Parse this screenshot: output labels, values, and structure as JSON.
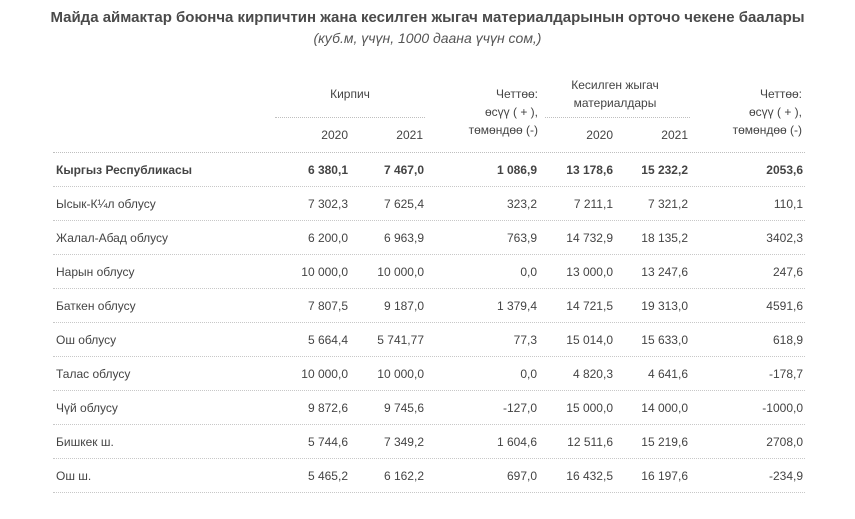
{
  "title": "Майда аймактар боюнча кирпичтин жана кесилген жыгач материалдарынын орточо чекене баалары",
  "subtitle": "(куб.м, үчүн, 1000 даана үчүн сом,)",
  "header": {
    "brick": "Кирпич",
    "diff1_line1": "Четтөө:",
    "diff1_line2": "өсүү ( + ),",
    "diff1_line3": "төмөндөө (-)",
    "timber_line1": "Кесилген жыгач",
    "timber_line2": "материалдары",
    "diff2_line1": "Четтөө:",
    "diff2_line2": "өсүү ( + ),",
    "diff2_line3": "төмөндөө (-)",
    "y2020a": "2020",
    "y2021a": "2021",
    "y2020b": "2020",
    "y2021b": "2021"
  },
  "rows": [
    {
      "name": "Кыргыз Республикасы",
      "b2020": "6 380,1",
      "b2021": "7 467,0",
      "bdiff": "1 086,9",
      "t2020": "13 178,6",
      "t2021": "15 232,2",
      "tdiff": "2053,6"
    },
    {
      "name": "Ысык-К¼л облусу",
      "b2020": "7 302,3",
      "b2021": "7 625,4",
      "bdiff": "323,2",
      "t2020": "7 211,1",
      "t2021": "7 321,2",
      "tdiff": "110,1"
    },
    {
      "name": "Жалал-Абад облусу",
      "b2020": "6 200,0",
      "b2021": "6 963,9",
      "bdiff": "763,9",
      "t2020": "14 732,9",
      "t2021": "18 135,2",
      "tdiff": "3402,3"
    },
    {
      "name": "Нарын облусу",
      "b2020": "10 000,0",
      "b2021": "10 000,0",
      "bdiff": "0,0",
      "t2020": "13 000,0",
      "t2021": "13 247,6",
      "tdiff": "247,6"
    },
    {
      "name": "Баткен облусу",
      "b2020": "7 807,5",
      "b2021": "9 187,0",
      "bdiff": "1 379,4",
      "t2020": "14 721,5",
      "t2021": "19 313,0",
      "tdiff": "4591,6"
    },
    {
      "name": "Ош облусу",
      "b2020": "5 664,4",
      "b2021": "5 741,77",
      "bdiff": "77,3",
      "t2020": "15 014,0",
      "t2021": "15 633,0",
      "tdiff": "618,9"
    },
    {
      "name": "Талас облусу",
      "b2020": "10 000,0",
      "b2021": "10 000,0",
      "bdiff": "0,0",
      "t2020": "4 820,3",
      "t2021": "4 641,6",
      "tdiff": "-178,7"
    },
    {
      "name": "Чүй облусу",
      "b2020": "9 872,6",
      "b2021": "9 745,6",
      "bdiff": "-127,0",
      "t2020": "15 000,0",
      "t2021": "14 000,0",
      "tdiff": "-1000,0"
    },
    {
      "name": "Бишкек ш.",
      "b2020": "5 744,6",
      "b2021": "7 349,2",
      "bdiff": "1 604,6",
      "t2020": "12 511,6",
      "t2021": "15 219,6",
      "tdiff": "2708,0"
    },
    {
      "name": "Ош ш.",
      "b2020": "5 465,2",
      "b2021": "6 162,2",
      "bdiff": "697,0",
      "t2020": "16 432,5",
      "t2021": "16 197,6",
      "tdiff": "-234,9"
    }
  ]
}
